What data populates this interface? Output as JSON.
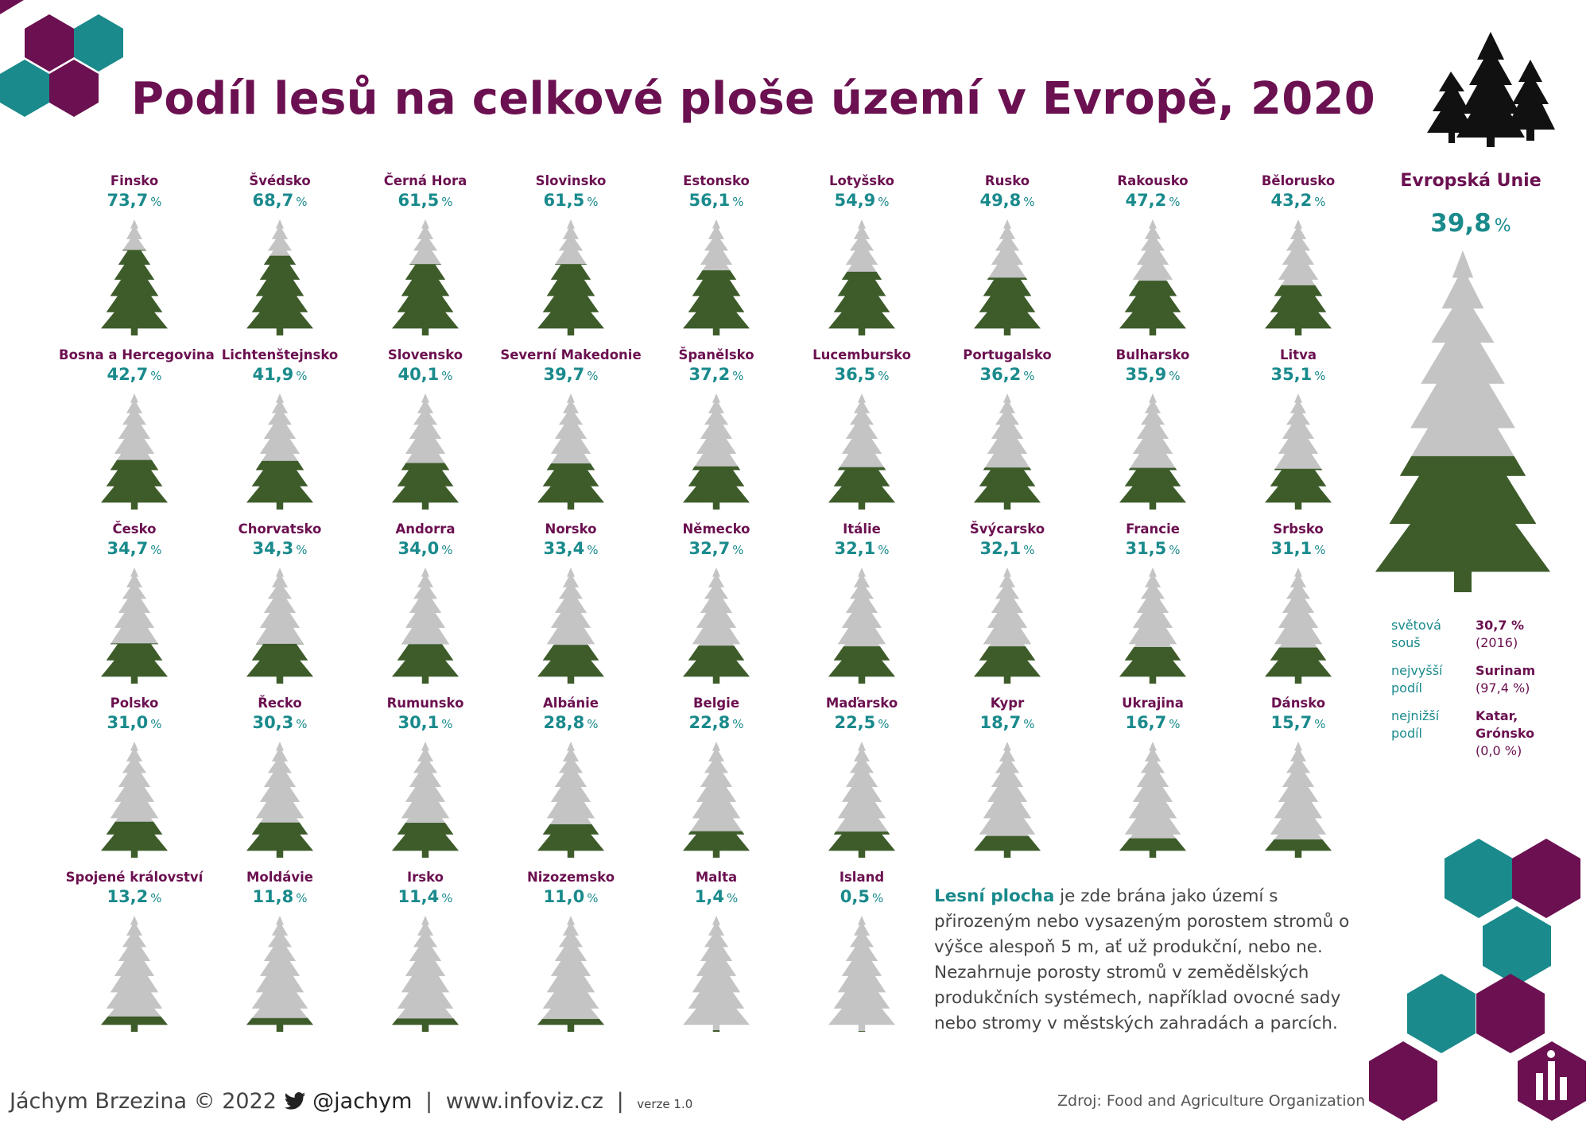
{
  "title": "Podíl lesů na celkové ploše území v Evropě, 2020",
  "chart_data": {
    "type": "bar",
    "title": "Podíl lesů na celkové ploše území v Evropě, 2020",
    "unit": "%",
    "ylim": [
      0,
      100
    ],
    "categories": [
      "Finsko",
      "Švédsko",
      "Černá Hora",
      "Slovinsko",
      "Estonsko",
      "Lotyšsko",
      "Rusko",
      "Rakousko",
      "Bělorusko",
      "Bosna a Hercegovina",
      "Lichtenštejnsko",
      "Slovensko",
      "Severní Makedonie",
      "Španělsko",
      "Lucembursko",
      "Portugalsko",
      "Bulharsko",
      "Litva",
      "Česko",
      "Chorvatsko",
      "Andorra",
      "Norsko",
      "Německo",
      "Itálie",
      "Švýcarsko",
      "Francie",
      "Srbsko",
      "Polsko",
      "Řecko",
      "Rumunsko",
      "Albánie",
      "Belgie",
      "Maďarsko",
      "Kypr",
      "Ukrajina",
      "Dánsko",
      "Spojené království",
      "Moldávie",
      "Irsko",
      "Nizozemsko",
      "Malta",
      "Island"
    ],
    "values": [
      73.7,
      68.7,
      61.5,
      61.5,
      56.1,
      54.9,
      49.8,
      47.2,
      43.2,
      42.7,
      41.9,
      40.1,
      39.7,
      37.2,
      36.5,
      36.2,
      35.9,
      35.1,
      34.7,
      34.3,
      34.0,
      33.4,
      32.7,
      32.1,
      32.1,
      31.5,
      31.1,
      31.0,
      30.3,
      30.1,
      28.8,
      22.8,
      22.5,
      18.7,
      16.7,
      15.7,
      13.2,
      11.8,
      11.4,
      11.0,
      1.4,
      0.5
    ],
    "labels": [
      "73,7",
      "68,7",
      "61,5",
      "61,5",
      "56,1",
      "54,9",
      "49,8",
      "47,2",
      "43,2",
      "42,7",
      "41,9",
      "40,1",
      "39,7",
      "37,2",
      "36,5",
      "36,2",
      "35,9",
      "35,1",
      "34,7",
      "34,3",
      "34,0",
      "33,4",
      "32,7",
      "32,1",
      "32,1",
      "31,5",
      "31,1",
      "31,0",
      "30,3",
      "30,1",
      "28,8",
      "22,8",
      "22,5",
      "18,7",
      "16,7",
      "15,7",
      "13,2",
      "11,8",
      "11,4",
      "11,0",
      "1,4",
      "0,5"
    ],
    "eu": {
      "name": "Evropská Unie",
      "value": 39.8,
      "label": "39,8"
    }
  },
  "pct_sign": "%",
  "stats": [
    {
      "label": "světová souš",
      "value": "30,7 %",
      "extra": "(2016)"
    },
    {
      "label": "nejvyšší podíl",
      "value": "Surinam",
      "extra": "(97,4 %)"
    },
    {
      "label": "nejnižší podíl",
      "value": "Katar, Grónsko",
      "extra": "(0,0 %)"
    }
  ],
  "note": {
    "highlight": "Lesní plocha",
    "text": " je zde brána jako území s přirozeným nebo vysazeným porostem stromů o výšce alespoň 5 m, ať už produkční, nebo ne. Nezahrnuje porosty stromů v zemědělských produkčních systémech, například ovocné sady nebo stromy v městských zahradách a parcích."
  },
  "footer": {
    "author": "Jáchym Brzezina © 2022",
    "twitter": "@jachym",
    "website": "www.infoviz.cz",
    "separator": "|",
    "version": "verze 1.0"
  },
  "source": "Zdroj: Food and Agriculture Organization",
  "colors": {
    "forest": "#3d5c2a",
    "bare": "#c4c4c4",
    "purple": "#6b1050",
    "teal": "#1a8a8c"
  },
  "icons": [
    "hexagon-decoration",
    "fir-trees-icon",
    "twitter-bird-icon",
    "infoviz-logo-icon"
  ]
}
